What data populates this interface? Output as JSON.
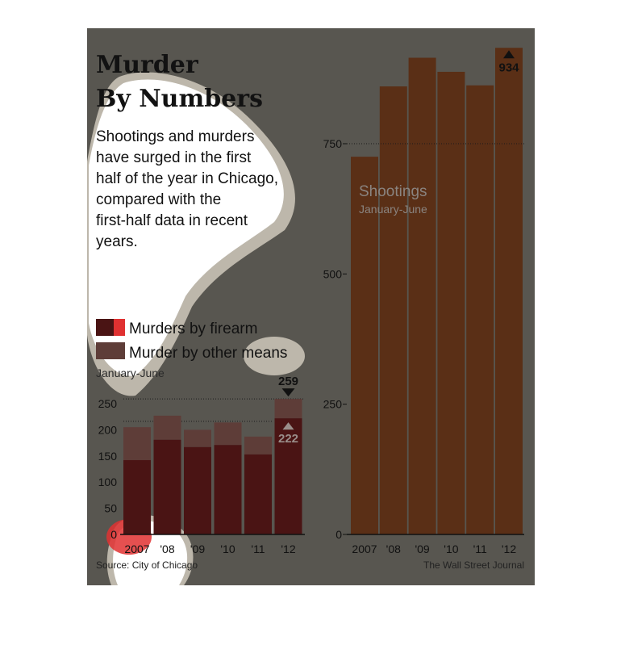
{
  "title_lines": [
    "Murder",
    "By Numbers"
  ],
  "intro_lines": [
    "Shootings and murders",
    "have surged in the first",
    "half of the year in Chicago,",
    "compared with the",
    "first-half data in recent",
    "years."
  ],
  "legend": {
    "firearm": "Murders by firearm",
    "other": "Murder by other means",
    "period": "January-June"
  },
  "source": "Source: City of Chicago",
  "credit": "The Wall Street Journal",
  "colors": {
    "background": "#585650",
    "firearm": "#4a1414",
    "firearm_legend_accent": "#e03131",
    "other": "#5e3d38",
    "shootings": "#5a2f16",
    "highlight_blob": "#ffffff",
    "blob_halo": "#bdb7ab"
  },
  "chart_data": [
    {
      "type": "bar",
      "stacked": true,
      "title": "",
      "categories": [
        "2007",
        "'08",
        "'09",
        "'10",
        "'11",
        "'12"
      ],
      "series": [
        {
          "name": "Murders by firearm",
          "values": [
            142,
            181,
            167,
            171,
            153,
            222
          ]
        },
        {
          "name": "Murder by other means",
          "values": [
            63,
            46,
            33,
            43,
            34,
            37
          ]
        }
      ],
      "totals": [
        205,
        227,
        200,
        214,
        187,
        259
      ],
      "ylim": [
        0,
        250
      ],
      "yticks": [
        0,
        50,
        100,
        150,
        200,
        250
      ],
      "ylabel": "",
      "annotations": [
        {
          "category": "'12",
          "label": "259",
          "marker": "down-triangle",
          "refers_to": "total"
        },
        {
          "category": "'12",
          "label": "222",
          "marker": "up-triangle",
          "refers_to": "Murders by firearm"
        }
      ],
      "grid": "dotted at top value"
    },
    {
      "type": "bar",
      "title": "Shootings",
      "subtitle": "January-June",
      "categories": [
        "2007",
        "'08",
        "'09",
        "'10",
        "'11",
        "'12"
      ],
      "values": [
        725,
        860,
        915,
        888,
        862,
        934
      ],
      "ylim": [
        0,
        934
      ],
      "yticks": [
        0,
        250,
        500,
        750
      ],
      "annotations": [
        {
          "category": "'12",
          "label": "934",
          "marker": "up-triangle"
        }
      ],
      "grid": "dotted at 750"
    }
  ]
}
